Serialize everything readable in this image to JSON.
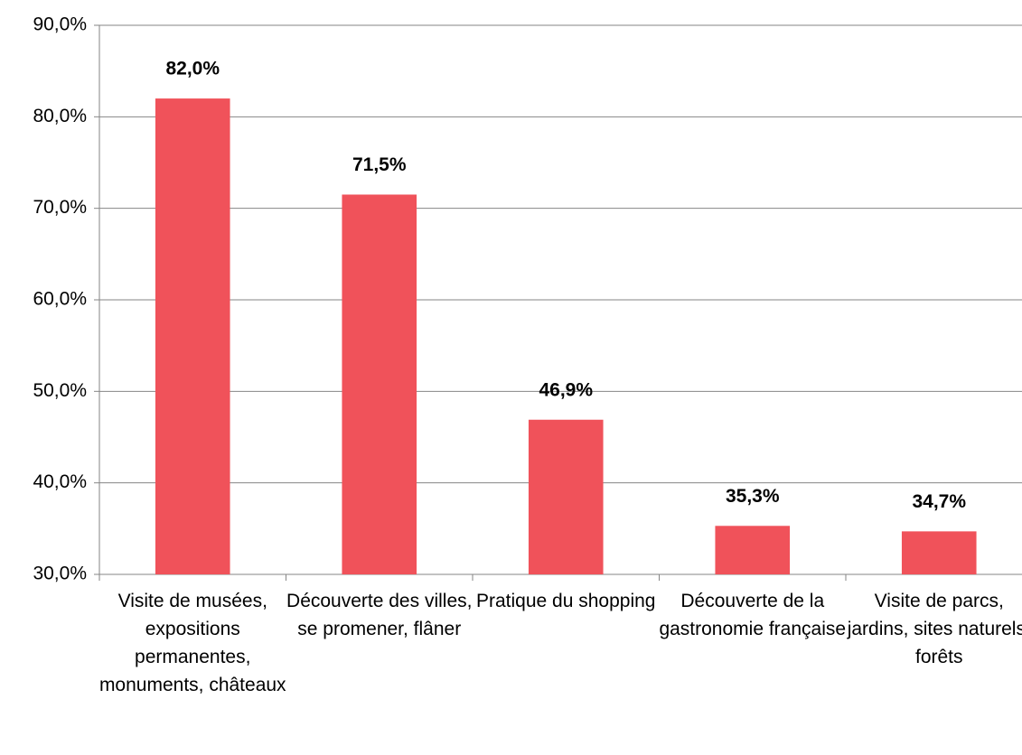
{
  "chart_data": {
    "type": "bar",
    "categories": [
      "Visite de musées, expositions permanentes, monuments, châteaux",
      "Découverte des villes, se promener, flâner",
      "Pratique du shopping",
      "Découverte de la gastronomie française",
      "Visite de parcs, jardins, sites naturels, forêts"
    ],
    "values": [
      82.0,
      71.5,
      46.9,
      35.3,
      34.7
    ],
    "value_labels": [
      "82,0%",
      "71,5%",
      "46,9%",
      "35,3%",
      "34,7%"
    ],
    "color": "#f0525a",
    "ylim": [
      30,
      90
    ],
    "yticks": [
      {
        "value": 30,
        "label": "30,0%"
      },
      {
        "value": 40,
        "label": "40,0%"
      },
      {
        "value": 50,
        "label": "50,0%"
      },
      {
        "value": 60,
        "label": "60,0%"
      },
      {
        "value": 70,
        "label": "70,0%"
      },
      {
        "value": 80,
        "label": "80,0%"
      },
      {
        "value": 90,
        "label": "90,0%"
      }
    ],
    "grid": true
  }
}
